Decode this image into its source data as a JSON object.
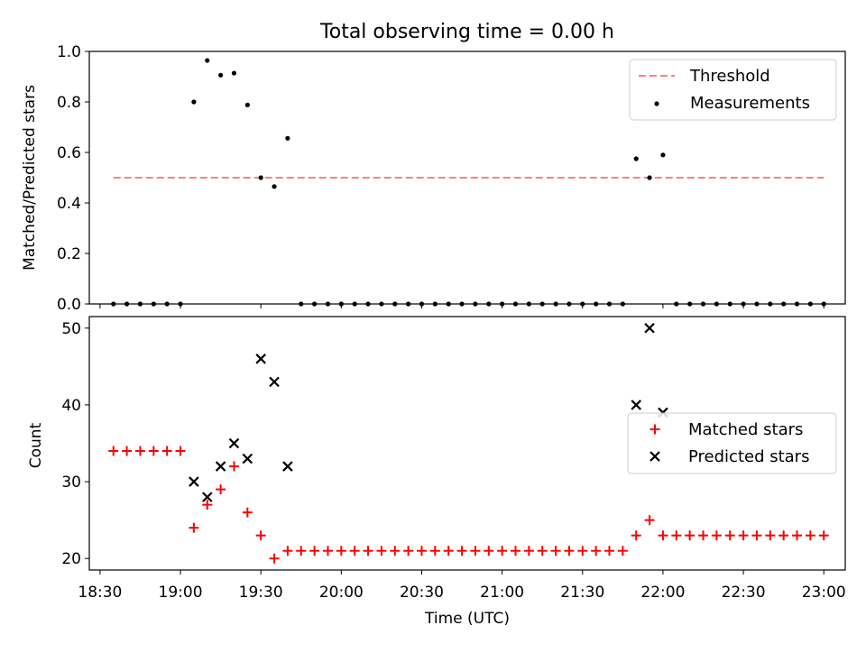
{
  "title": "Total observing time = 0.00 h",
  "colors": {
    "threshold": "#ff7f7f",
    "measurement": "#000000",
    "matched": "#ff0000",
    "predicted": "#000000"
  },
  "chart_data": [
    {
      "type": "scatter",
      "ylabel": "Matched/Predicted stars",
      "xlabel": "",
      "xlim": [
        "18:26",
        "23:08"
      ],
      "ylim": [
        0,
        1.0
      ],
      "yticks": [
        0.0,
        0.2,
        0.4,
        0.6,
        0.8,
        1.0
      ],
      "ytick_labels": [
        "0.0",
        "0.2",
        "0.4",
        "0.6",
        "0.8",
        "1.0"
      ],
      "grid": false,
      "legend": {
        "position": "top-right",
        "entries": [
          "Threshold",
          "Measurements"
        ]
      },
      "threshold": {
        "name": "Threshold",
        "y": 0.5,
        "x_start": "18:35",
        "x_end": "23:00"
      },
      "series": [
        {
          "name": "Measurements",
          "x": [
            "18:35",
            "18:40",
            "18:45",
            "18:50",
            "18:55",
            "19:00",
            "19:05",
            "19:10",
            "19:15",
            "19:20",
            "19:25",
            "19:30",
            "19:35",
            "19:40",
            "19:45",
            "19:50",
            "19:55",
            "20:00",
            "20:05",
            "20:10",
            "20:15",
            "20:20",
            "20:25",
            "20:30",
            "20:35",
            "20:40",
            "20:45",
            "20:50",
            "20:55",
            "21:00",
            "21:05",
            "21:10",
            "21:15",
            "21:20",
            "21:25",
            "21:30",
            "21:35",
            "21:40",
            "21:45",
            "21:50",
            "21:55",
            "22:00",
            "22:05",
            "22:10",
            "22:15",
            "22:20",
            "22:25",
            "22:30",
            "22:35",
            "22:40",
            "22:45",
            "22:50",
            "22:55",
            "23:00"
          ],
          "y": [
            0,
            0,
            0,
            0,
            0,
            0,
            0.8,
            0.964,
            0.906,
            0.914,
            0.788,
            0.5,
            0.465,
            0.656,
            0,
            0,
            0,
            0,
            0,
            0,
            0,
            0,
            0,
            0,
            0,
            0,
            0,
            0,
            0,
            0,
            0,
            0,
            0,
            0,
            0,
            0,
            0,
            0,
            0,
            0.575,
            0.5,
            0.59,
            0,
            0,
            0,
            0,
            0,
            0,
            0,
            0,
            0,
            0,
            0,
            0
          ]
        }
      ]
    },
    {
      "type": "scatter",
      "ylabel": "Count",
      "xlabel": "Time (UTC)",
      "xlim": [
        "18:26",
        "23:08"
      ],
      "ylim": [
        18.5,
        51.5
      ],
      "yticks": [
        20,
        30,
        40,
        50
      ],
      "ytick_labels": [
        "20",
        "30",
        "40",
        "50"
      ],
      "xticks": [
        "18:30",
        "19:00",
        "19:30",
        "20:00",
        "20:30",
        "21:00",
        "21:30",
        "22:00",
        "22:30",
        "23:00"
      ],
      "grid": false,
      "legend": {
        "position": "center-right",
        "entries": [
          "Matched stars",
          "Predicted stars"
        ]
      },
      "series": [
        {
          "name": "Matched stars",
          "x": [
            "18:35",
            "18:40",
            "18:45",
            "18:50",
            "18:55",
            "19:00",
            "19:05",
            "19:10",
            "19:15",
            "19:20",
            "19:25",
            "19:30",
            "19:35",
            "19:40",
            "19:45",
            "19:50",
            "19:55",
            "20:00",
            "20:05",
            "20:10",
            "20:15",
            "20:20",
            "20:25",
            "20:30",
            "20:35",
            "20:40",
            "20:45",
            "20:50",
            "20:55",
            "21:00",
            "21:05",
            "21:10",
            "21:15",
            "21:20",
            "21:25",
            "21:30",
            "21:35",
            "21:40",
            "21:45",
            "21:50",
            "21:55",
            "22:00",
            "22:05",
            "22:10",
            "22:15",
            "22:20",
            "22:25",
            "22:30",
            "22:35",
            "22:40",
            "22:45",
            "22:50",
            "22:55",
            "23:00"
          ],
          "y": [
            34,
            34,
            34,
            34,
            34,
            34,
            24,
            27,
            29,
            32,
            26,
            23,
            20,
            21,
            21,
            21,
            21,
            21,
            21,
            21,
            21,
            21,
            21,
            21,
            21,
            21,
            21,
            21,
            21,
            21,
            21,
            21,
            21,
            21,
            21,
            21,
            21,
            21,
            21,
            23,
            25,
            23,
            23,
            23,
            23,
            23,
            23,
            23,
            23,
            23,
            23,
            23,
            23,
            23
          ]
        },
        {
          "name": "Predicted stars",
          "x": [
            "19:05",
            "19:10",
            "19:15",
            "19:20",
            "19:25",
            "19:30",
            "19:35",
            "19:40",
            "21:50",
            "21:55",
            "22:00"
          ],
          "y": [
            30,
            28,
            32,
            35,
            33,
            46,
            43,
            32,
            40,
            50,
            39
          ]
        }
      ]
    }
  ]
}
